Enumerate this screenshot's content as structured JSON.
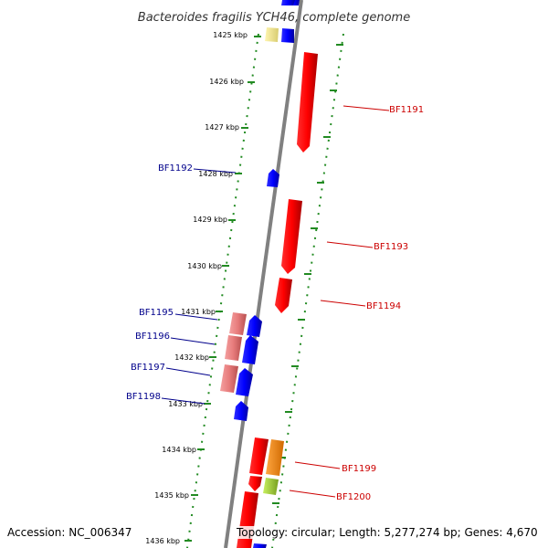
{
  "title": "Bacteroides fragilis YCH46, complete genome",
  "accession_text": "Accession: NC_006347",
  "topology_text": "Topology: circular; Length: 5,277,274 bp; Genes: 4,670",
  "tick_labels": [
    "1425 kbp",
    "1426 kbp",
    "1427 kbp",
    "1428 kbp",
    "1429 kbp",
    "1430 kbp",
    "1431 kbp",
    "1432 kbp",
    "1433 kbp",
    "1434 kbp",
    "1435 kbp",
    "1436 kbp"
  ],
  "left_gene_labels": [
    "BF1192",
    "BF1195",
    "BF1196",
    "BF1197",
    "BF1198"
  ],
  "right_gene_labels": [
    "BF1191",
    "BF1193",
    "BF1194",
    "BF1199",
    "BF1200"
  ],
  "colors": {
    "backbone": "#808080",
    "tick_dots": "#228b22",
    "reverse_strand_gene": "#0000ff",
    "forward_strand_gene": "#ff0000",
    "pale_gene": "#e77b7b",
    "yellow_gene": "#f0e68c",
    "orange_gene": "#ff8c00",
    "green_gene": "#9acd32",
    "left_label": "#00008b",
    "right_label": "#cc0000"
  }
}
